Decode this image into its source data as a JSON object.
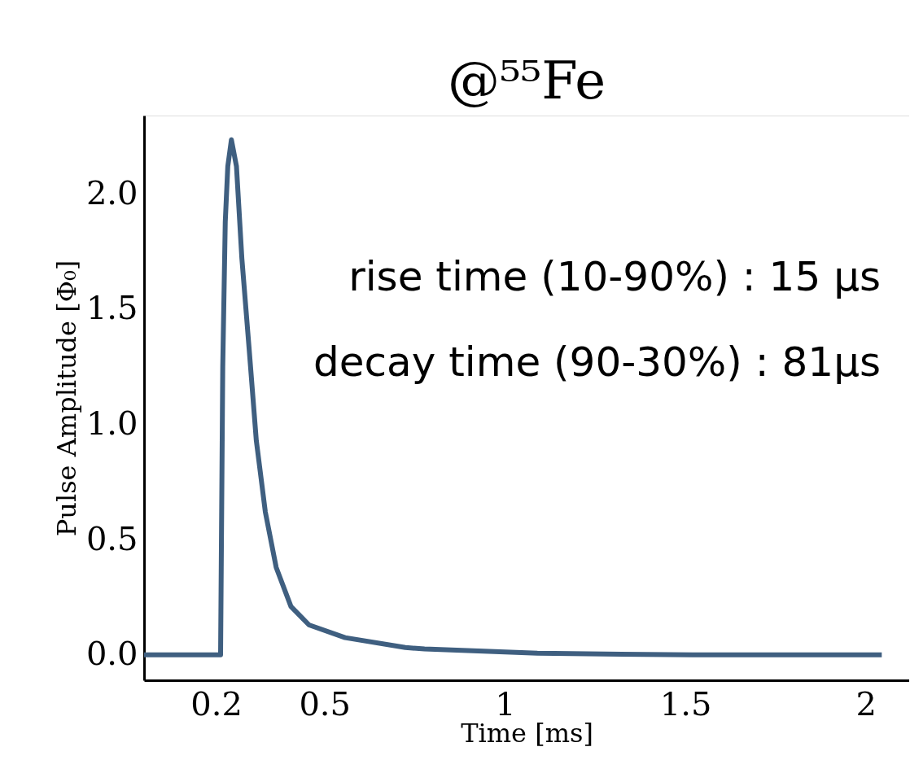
{
  "chart_data": {
    "type": "line",
    "title": "@⁵⁵Fe",
    "xlabel": "Time [ms]",
    "ylabel": "Pulse Amplitude [Φ₀]",
    "x": [
      0,
      0.212,
      0.218,
      0.225,
      0.232,
      0.242,
      0.256,
      0.271,
      0.291,
      0.311,
      0.336,
      0.366,
      0.407,
      0.457,
      0.557,
      0.724,
      0.777,
      1.09,
      1.52,
      2.044
    ],
    "series": [
      {
        "color": "#3f5f80",
        "values": [
          0,
          0,
          1.25,
          1.88,
          2.12,
          2.235,
          2.12,
          1.72,
          1.33,
          0.93,
          0.62,
          0.38,
          0.21,
          0.13,
          0.075,
          0.032,
          0.026,
          0.007,
          0,
          0
        ]
      }
    ],
    "xlim": [
      0,
      2.12
    ],
    "ylim": [
      -0.11,
      2.34
    ],
    "xticks": [
      0.2,
      0.5,
      1,
      1.5,
      2
    ],
    "yticks": [
      {
        "value": 0,
        "label": "0.0"
      },
      0.5,
      {
        "value": 1,
        "label": "1.0"
      },
      1.5,
      {
        "value": 2,
        "label": "2.0"
      }
    ],
    "annotations": [
      "rise time (10-90%) :  15 μs",
      "decay time (90-30%) : 81μs"
    ],
    "grid": false
  }
}
